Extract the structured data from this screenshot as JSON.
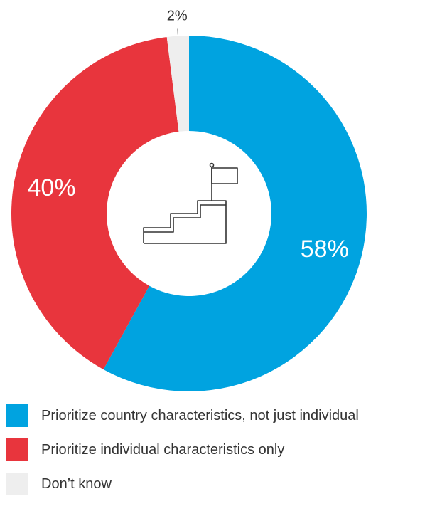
{
  "chart_data": {
    "type": "pie",
    "title": "",
    "donut": true,
    "slices": [
      {
        "name": "Prioritize country characteristics, not just individual",
        "value": 58,
        "label": "58%",
        "color": "#00a3e0"
      },
      {
        "name": "Prioritize individual characteristics only",
        "value": 40,
        "label": "40%",
        "color": "#e8353d"
      },
      {
        "name": "Don’t know",
        "value": 2,
        "label": "2%",
        "color": "#eeeeee"
      }
    ],
    "center_icon": "stairs-flag-icon"
  },
  "legend": {
    "items": [
      {
        "label": "Prioritize country characteristics, not just individual",
        "color": "#00a3e0"
      },
      {
        "label": "Prioritize individual characteristics only",
        "color": "#e8353d"
      },
      {
        "label": "Don’t know",
        "color": "#eeeeee"
      }
    ]
  }
}
